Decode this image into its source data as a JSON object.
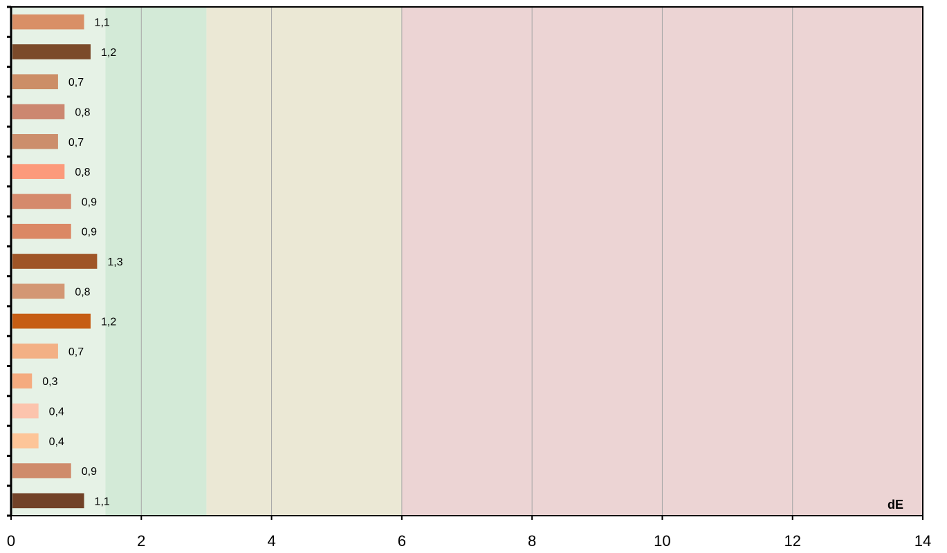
{
  "chart_data": {
    "type": "bar",
    "orientation": "horizontal",
    "xlim": [
      0,
      14
    ],
    "x_ticks": [
      0,
      2,
      4,
      6,
      8,
      10,
      12,
      14
    ],
    "x_tick_labels": [
      "0",
      "2",
      "4",
      "6",
      "8",
      "10",
      "12",
      "14"
    ],
    "grid": "vertical",
    "unit_label": "dE",
    "bands": [
      {
        "from": 0,
        "to": 1.45,
        "color": "#e6f2e6"
      },
      {
        "from": 1.45,
        "to": 3,
        "color": "#d3ead7"
      },
      {
        "from": 3,
        "to": 6,
        "color": "#ebe8d5"
      },
      {
        "from": 6,
        "to": 14,
        "color": "#ecd4d4"
      }
    ],
    "bars": [
      {
        "value": 1.1,
        "label": "1,1",
        "color": "#d98f66"
      },
      {
        "value": 1.2,
        "label": "1,2",
        "color": "#7b4a2a"
      },
      {
        "value": 0.7,
        "label": "0,7",
        "color": "#cc8e67"
      },
      {
        "value": 0.8,
        "label": "0,8",
        "color": "#cc8770"
      },
      {
        "value": 0.7,
        "label": "0,7",
        "color": "#cc8e6c"
      },
      {
        "value": 0.8,
        "label": "0,8",
        "color": "#fc9a7b"
      },
      {
        "value": 0.9,
        "label": "0,9",
        "color": "#d58a6c"
      },
      {
        "value": 0.9,
        "label": "0,9",
        "color": "#db8865"
      },
      {
        "value": 1.3,
        "label": "1,3",
        "color": "#9f5527"
      },
      {
        "value": 0.8,
        "label": "0,8",
        "color": "#d39774"
      },
      {
        "value": 1.2,
        "label": "1,2",
        "color": "#c65d14"
      },
      {
        "value": 0.7,
        "label": "0,7",
        "color": "#f3b085"
      },
      {
        "value": 0.3,
        "label": "0,3",
        "color": "#f5ab7f"
      },
      {
        "value": 0.4,
        "label": "0,4",
        "color": "#fcc4ad"
      },
      {
        "value": 0.4,
        "label": "0,4",
        "color": "#fdc598"
      },
      {
        "value": 0.9,
        "label": "0,9",
        "color": "#cf8b6b"
      },
      {
        "value": 1.1,
        "label": "1,1",
        "color": "#724228"
      }
    ]
  }
}
